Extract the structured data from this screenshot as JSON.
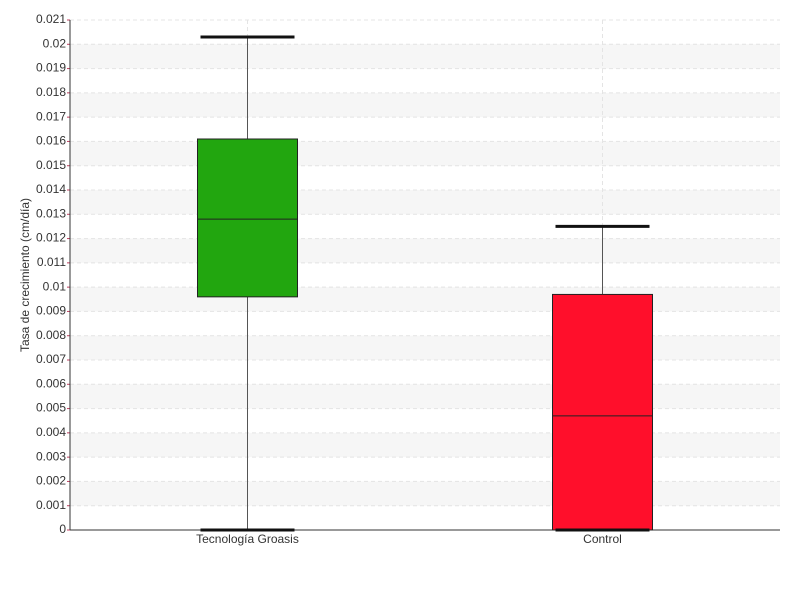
{
  "chart_data": {
    "type": "box",
    "y_label": "Tasa de crecimiento (cm/día)",
    "categories": [
      "Tecnología Groasis",
      "Control"
    ],
    "boxes": [
      {
        "min": 0,
        "q1": 0.0096,
        "median": 0.0128,
        "q3": 0.0161,
        "max": 0.0203,
        "color": "#22a60f"
      },
      {
        "min": 0,
        "q1": 0,
        "median": 0.0047,
        "q3": 0.0097,
        "max": 0.0125,
        "color": "#ff0f2b"
      }
    ],
    "ylim": [
      0,
      0.021
    ],
    "yticks": [
      0,
      0.001,
      0.002,
      0.003,
      0.004,
      0.005,
      0.006,
      0.007,
      0.008,
      0.009,
      0.01,
      0.011,
      0.012,
      0.013,
      0.014,
      0.015,
      0.016,
      0.017,
      0.018,
      0.019,
      0.02,
      0.021
    ],
    "grid": true
  }
}
